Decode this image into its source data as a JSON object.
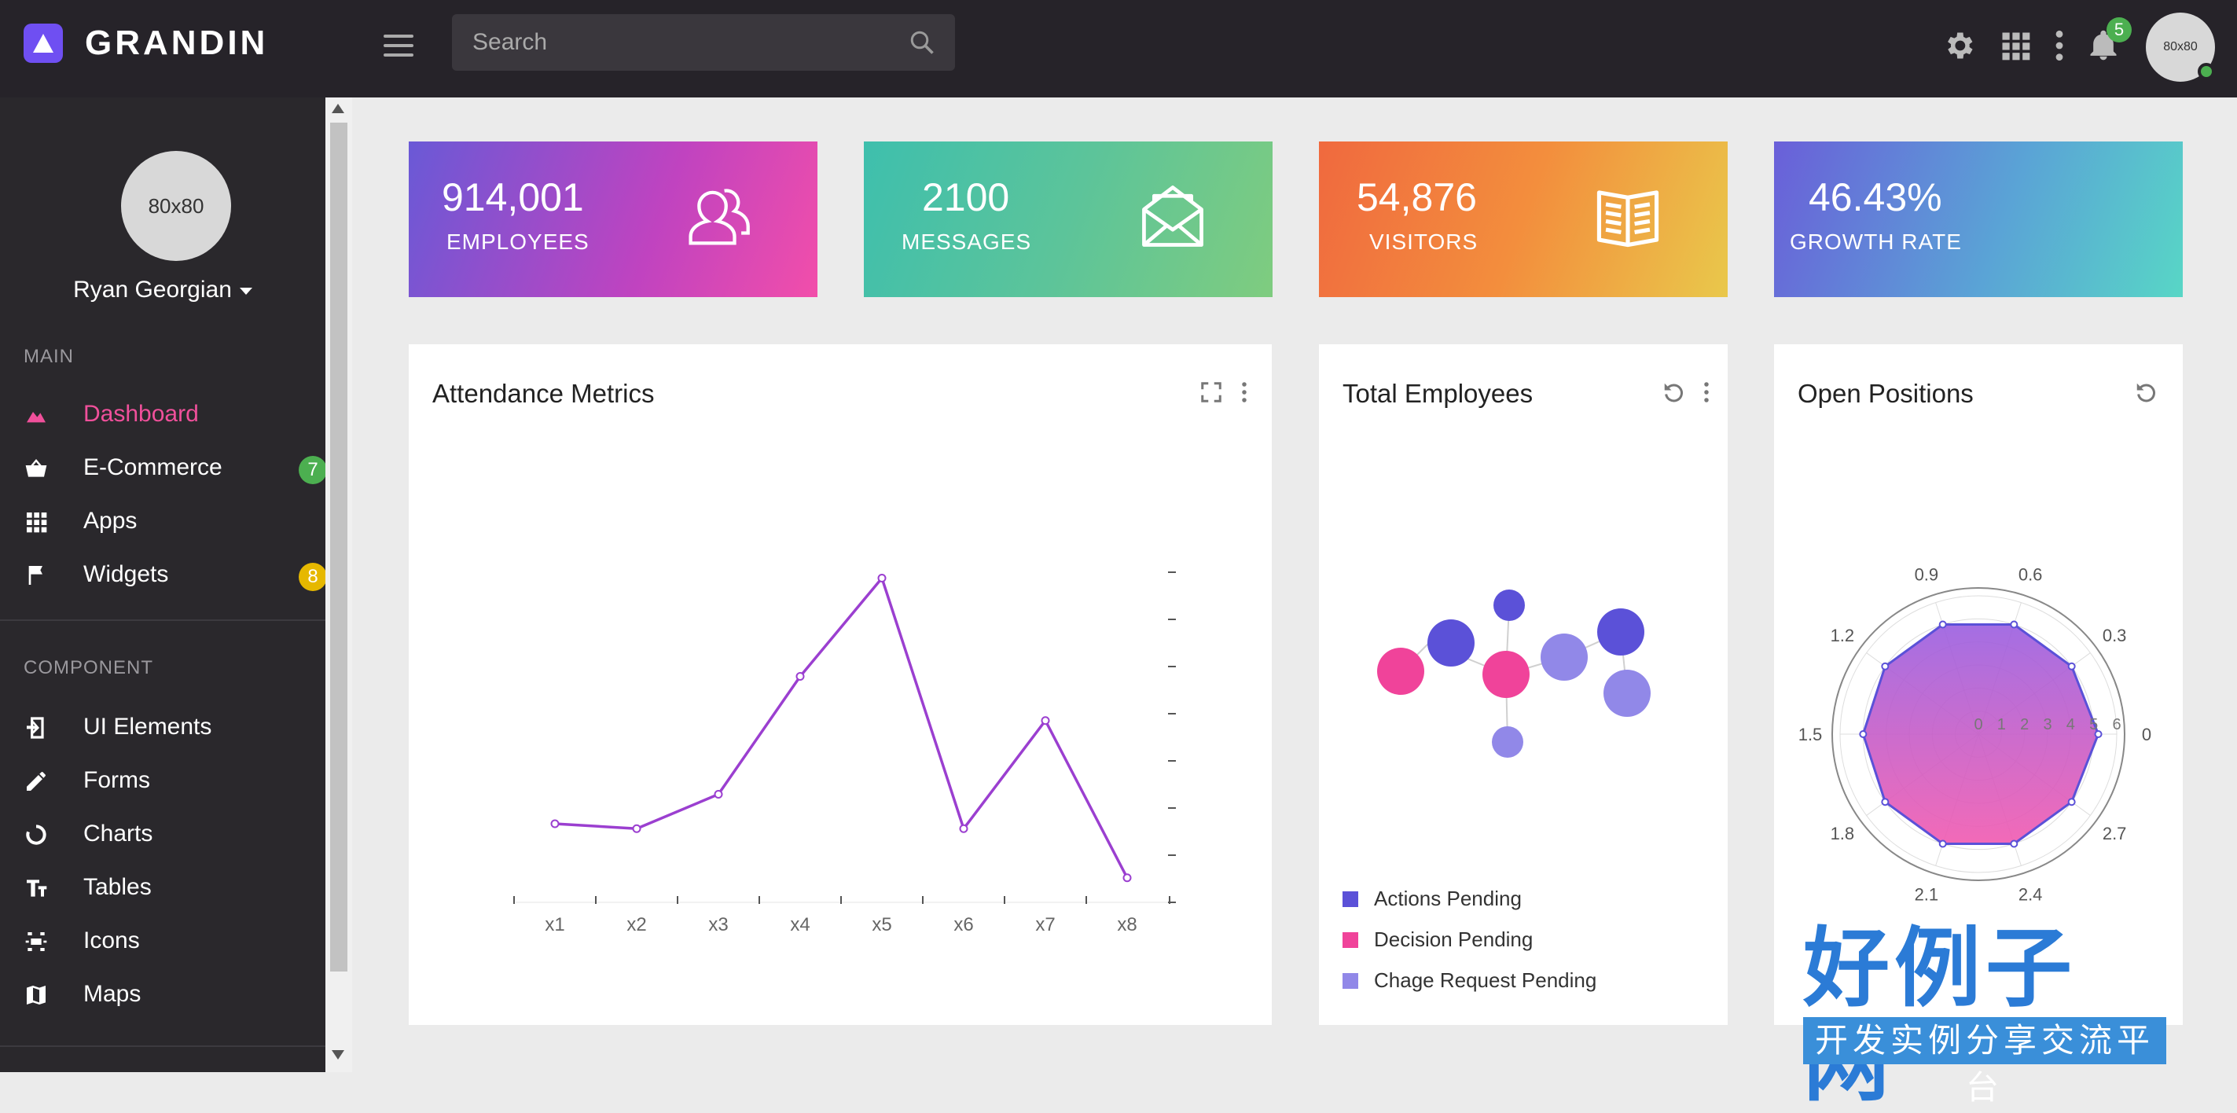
{
  "app": {
    "brand": "GRANDIN",
    "search_placeholder": "Search",
    "notification_count": "5",
    "top_avatar_text": "80x80"
  },
  "sidebar": {
    "avatar_text": "80x80",
    "user_name": "Ryan Georgian",
    "section_main": "MAIN",
    "section_component": "COMPONENT",
    "main_items": [
      {
        "label": "Dashboard",
        "icon": "dashboard-icon",
        "active": true
      },
      {
        "label": "E-Commerce",
        "icon": "basket-icon",
        "badge": "7",
        "badge_color": "#4caf50"
      },
      {
        "label": "Apps",
        "icon": "grid-icon"
      },
      {
        "label": "Widgets",
        "icon": "flag-icon",
        "badge": "8",
        "badge_color": "#e6b800"
      }
    ],
    "component_items": [
      {
        "label": "UI Elements",
        "icon": "ui-elements-icon"
      },
      {
        "label": "Forms",
        "icon": "pencil-icon"
      },
      {
        "label": "Charts",
        "icon": "chart-circle-icon"
      },
      {
        "label": "Tables",
        "icon": "table-icon"
      },
      {
        "label": "Icons",
        "icon": "icons-icon"
      },
      {
        "label": "Maps",
        "icon": "map-icon"
      }
    ]
  },
  "stats": [
    {
      "value": "914,001",
      "label": "EMPLOYEES",
      "icon": "users-icon"
    },
    {
      "value": "2100",
      "label": "MESSAGES",
      "icon": "envelope-icon"
    },
    {
      "value": "54,876",
      "label": "VISITORS",
      "icon": "book-icon"
    },
    {
      "value": "46.43%",
      "label": "GROWTH RATE",
      "icon": ""
    }
  ],
  "cards": {
    "attendance_title": "Attendance Metrics",
    "employees_title": "Total Employees",
    "positions_title": "Open Positions"
  },
  "legend": [
    {
      "label": "Actions Pending",
      "color": "#5b51d8"
    },
    {
      "label": "Decision Pending",
      "color": "#f0439a"
    },
    {
      "label": "Chage Request Pending",
      "color": "#9188e8"
    }
  ],
  "chart_data": [
    {
      "type": "line",
      "title": "Attendance Metrics",
      "categories": [
        "x1",
        "x2",
        "x3",
        "x4",
        "x5",
        "x6",
        "x7",
        "x8"
      ],
      "series": [
        {
          "values": [
            16,
            15,
            22,
            46,
            66,
            15,
            37,
            5
          ]
        }
      ],
      "ylim": [
        0,
        72
      ],
      "color": "#9b3fd0"
    },
    {
      "type": "radar",
      "title": "Open Positions",
      "angle_labels": [
        "0",
        "0.3",
        "0.6",
        "0.9",
        "1.2",
        "1.5",
        "1.8",
        "2.1",
        "2.4",
        "2.7"
      ],
      "radial_ticks": [
        "0",
        "1",
        "2",
        "3",
        "4",
        "5",
        "6"
      ],
      "values": [
        5.2,
        5.0,
        5.0,
        5.0,
        5.0,
        5.0,
        5.0,
        5.0,
        5.0,
        5.0
      ],
      "rlim": [
        0,
        6
      ]
    }
  ],
  "watermark": {
    "big": "好例子网",
    "small": "开发实例分享交流平台"
  }
}
